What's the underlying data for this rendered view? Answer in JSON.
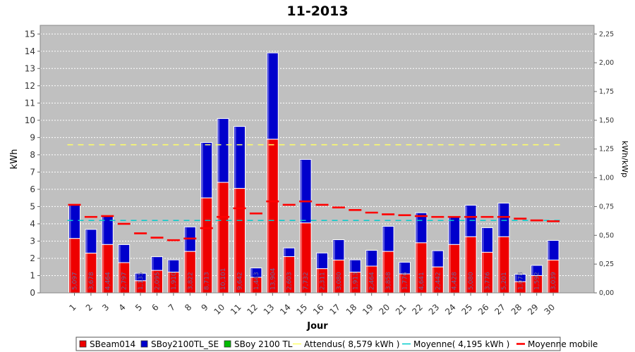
{
  "chart_data": {
    "type": "bar",
    "title": "11-2013",
    "xlabel": "Jour",
    "ylabel": "kWh",
    "y2label": "kWh/kWp",
    "ylim": [
      0,
      15.5
    ],
    "y2lim": [
      0,
      2.325
    ],
    "yticks": [
      "0",
      "1",
      "2",
      "3",
      "4",
      "5",
      "6",
      "7",
      "8",
      "9",
      "10",
      "11",
      "12",
      "13",
      "14",
      "15"
    ],
    "y2ticks": [
      "0,00",
      "0,25",
      "0,50",
      "0,75",
      "1,00",
      "1,25",
      "1,50",
      "1,75",
      "2,00",
      "2,25"
    ],
    "grid": true,
    "legend_position": "bottom",
    "categories": [
      "1",
      "2",
      "3",
      "4",
      "5",
      "6",
      "7",
      "8",
      "9",
      "10",
      "11",
      "12",
      "13",
      "14",
      "15",
      "16",
      "17",
      "18",
      "19",
      "20",
      "21",
      "22",
      "23",
      "24",
      "25",
      "26",
      "27",
      "28",
      "29",
      "30"
    ],
    "bar_labels": [
      "5,097",
      "3,678",
      "4,464",
      "2,797",
      "1,135",
      "2,095",
      "1,910",
      "3,822",
      "8,713",
      "10,101",
      "9,642",
      "1,443",
      "13,904",
      "2,603",
      "7,732",
      "2,311",
      "3,080",
      "1,913",
      "2,464",
      "3,858",
      "1,776",
      "4,641",
      "2,442",
      "4,428",
      "5,080",
      "3,776",
      "5,201",
      "1,078",
      "1,592",
      "3,039"
    ],
    "series": [
      {
        "name": "SBeam014",
        "color": "#ee0000",
        "values": [
          3.15,
          2.3,
          2.8,
          1.75,
          0.7,
          1.3,
          1.2,
          2.4,
          5.5,
          6.4,
          6.05,
          0.9,
          8.9,
          2.1,
          4.05,
          1.4,
          1.9,
          1.2,
          1.55,
          2.4,
          1.1,
          2.9,
          1.5,
          2.8,
          3.25,
          2.35,
          3.25,
          0.65,
          1.0,
          1.9
        ]
      },
      {
        "name": "SBoy2100TL_SE",
        "color": "#0000cc",
        "values": [
          1.947,
          1.378,
          1.664,
          1.047,
          0.435,
          0.795,
          0.71,
          1.422,
          3.213,
          3.701,
          3.592,
          0.543,
          5.004,
          0.503,
          3.682,
          0.911,
          1.18,
          0.713,
          0.914,
          1.458,
          0.676,
          1.741,
          0.942,
          1.628,
          1.83,
          1.426,
          1.951,
          0.428,
          0.592,
          1.139
        ]
      },
      {
        "name": "SBoy 2100 TL",
        "color": "#00bb00",
        "values": [
          0,
          0,
          0,
          0,
          0,
          0,
          0,
          0,
          0,
          0,
          0,
          0,
          0,
          0,
          0,
          0,
          0,
          0,
          0,
          0,
          0,
          0,
          0,
          0,
          0,
          0,
          0,
          0,
          0,
          0
        ]
      }
    ],
    "lines": [
      {
        "name": "Attendus( 8,579 kWh )",
        "color": "#ffff66",
        "style": "dashed",
        "value": 8.579
      },
      {
        "name": "Moyenne( 4,195 kWh )",
        "color": "#00cccc",
        "style": "dashed",
        "value": 4.195
      },
      {
        "name": "Moyenne mobile",
        "color": "#ff0000",
        "style": "segments",
        "values": [
          5.1,
          4.4,
          4.45,
          4.0,
          3.45,
          3.2,
          3.05,
          3.15,
          3.75,
          4.4,
          4.9,
          4.6,
          5.3,
          5.1,
          5.3,
          5.1,
          4.95,
          4.8,
          4.65,
          4.55,
          4.5,
          4.45,
          4.4,
          4.4,
          4.4,
          4.4,
          4.4,
          4.3,
          4.2,
          4.15
        ]
      }
    ]
  }
}
